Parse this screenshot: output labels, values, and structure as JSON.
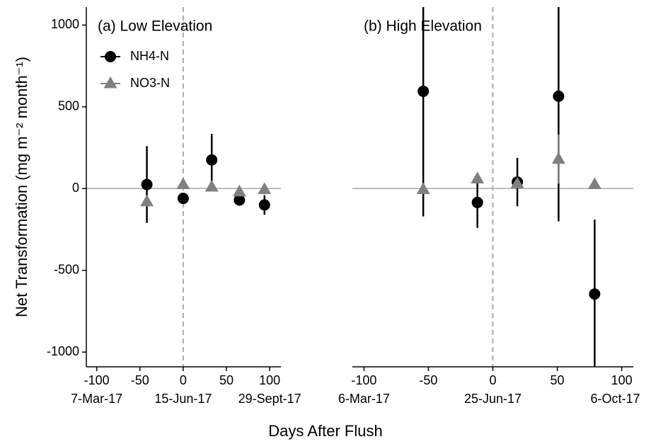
{
  "ylabel": "Net Transformation  (mg m⁻² month⁻¹)",
  "xlabel": "Days After Flush",
  "chart_data": [
    {
      "type": "scatter",
      "title": "(a) Low Elevation",
      "xlim": [
        -112,
        113
      ],
      "xticks": [
        -100,
        -50,
        0,
        50,
        100
      ],
      "xticks2": [
        {
          "value": -100,
          "label": "7-Mar-17"
        },
        {
          "value": 0,
          "label": "15-Jun-17"
        },
        {
          "value": 100,
          "label": "29-Sept-17"
        }
      ],
      "ylim": [
        -1090,
        1110
      ],
      "yticks": [
        -1000,
        -500,
        0,
        500,
        1000
      ],
      "hline": 0,
      "vline": 0,
      "legend": "top-left",
      "series": [
        {
          "name": "NH4-N",
          "color": "#000000",
          "marker": "circle",
          "x": [
            -42,
            0,
            33,
            65,
            94
          ],
          "values": [
            25,
            -60,
            175,
            -70,
            -100
          ],
          "errors": [
            235,
            null,
            160,
            null,
            60
          ]
        },
        {
          "name": "NO3-N",
          "color": "#808080",
          "marker": "triangle",
          "x": [
            -42,
            0,
            33,
            65,
            94
          ],
          "values": [
            -80,
            25,
            10,
            -20,
            -5
          ],
          "errors": [
            null,
            null,
            null,
            null,
            null
          ]
        }
      ]
    },
    {
      "type": "scatter",
      "title": "(b) High Elevation",
      "xlim": [
        -109,
        109
      ],
      "xticks": [
        -100,
        -50,
        0,
        50,
        100
      ],
      "xticks2": [
        {
          "value": -100,
          "label": "6-Mar-17"
        },
        {
          "value": 0,
          "label": "25-Jun-17"
        },
        {
          "value": 95,
          "label": "6-Oct-17"
        }
      ],
      "ylim": [
        -1090,
        1110
      ],
      "hline": 0,
      "vline": 0,
      "series": [
        {
          "name": "NH4-N",
          "color": "#000000",
          "marker": "circle",
          "x": [
            -54,
            -12,
            19,
            51,
            79
          ],
          "values": [
            595,
            -85,
            40,
            565,
            -645
          ],
          "errors": [
            765,
            155,
            148,
            765,
            455
          ]
        },
        {
          "name": "NO3-N",
          "color": "#808080",
          "marker": "triangle",
          "x": [
            -54,
            -12,
            19,
            51,
            79
          ],
          "values": [
            -5,
            60,
            30,
            180,
            25
          ],
          "errors": [
            null,
            null,
            null,
            150,
            null
          ]
        }
      ]
    }
  ]
}
